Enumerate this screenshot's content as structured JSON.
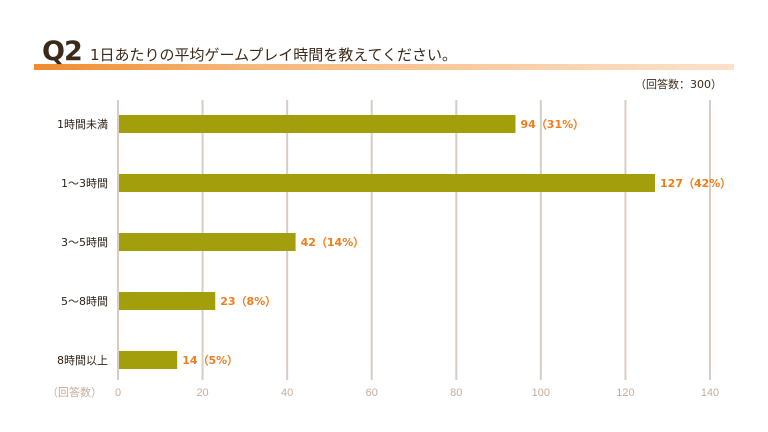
{
  "header": {
    "q_label": "Q2",
    "title": "1日あたりの平均ゲームプレイ時間を教えてください。",
    "respondents": "（回答数：300）"
  },
  "chart_data": {
    "type": "bar",
    "orientation": "horizontal",
    "categories": [
      "1時間未満",
      "1〜3時間",
      "3〜5時間",
      "5〜8時間",
      "8時間以上"
    ],
    "values": [
      94,
      127,
      42,
      23,
      14
    ],
    "data_labels": [
      "94（31%）",
      "127（42%）",
      "42（14%）",
      "23（8%）",
      "14（5%）"
    ],
    "xlabel": "（回答数）",
    "xlim": [
      0,
      140
    ],
    "xticks": [
      0,
      20,
      40,
      60,
      80,
      100,
      120,
      140
    ],
    "grid": true,
    "bar_color": "#a39e0c",
    "label_color": "#f07d1c",
    "grid_color": "#d9cdc3"
  }
}
